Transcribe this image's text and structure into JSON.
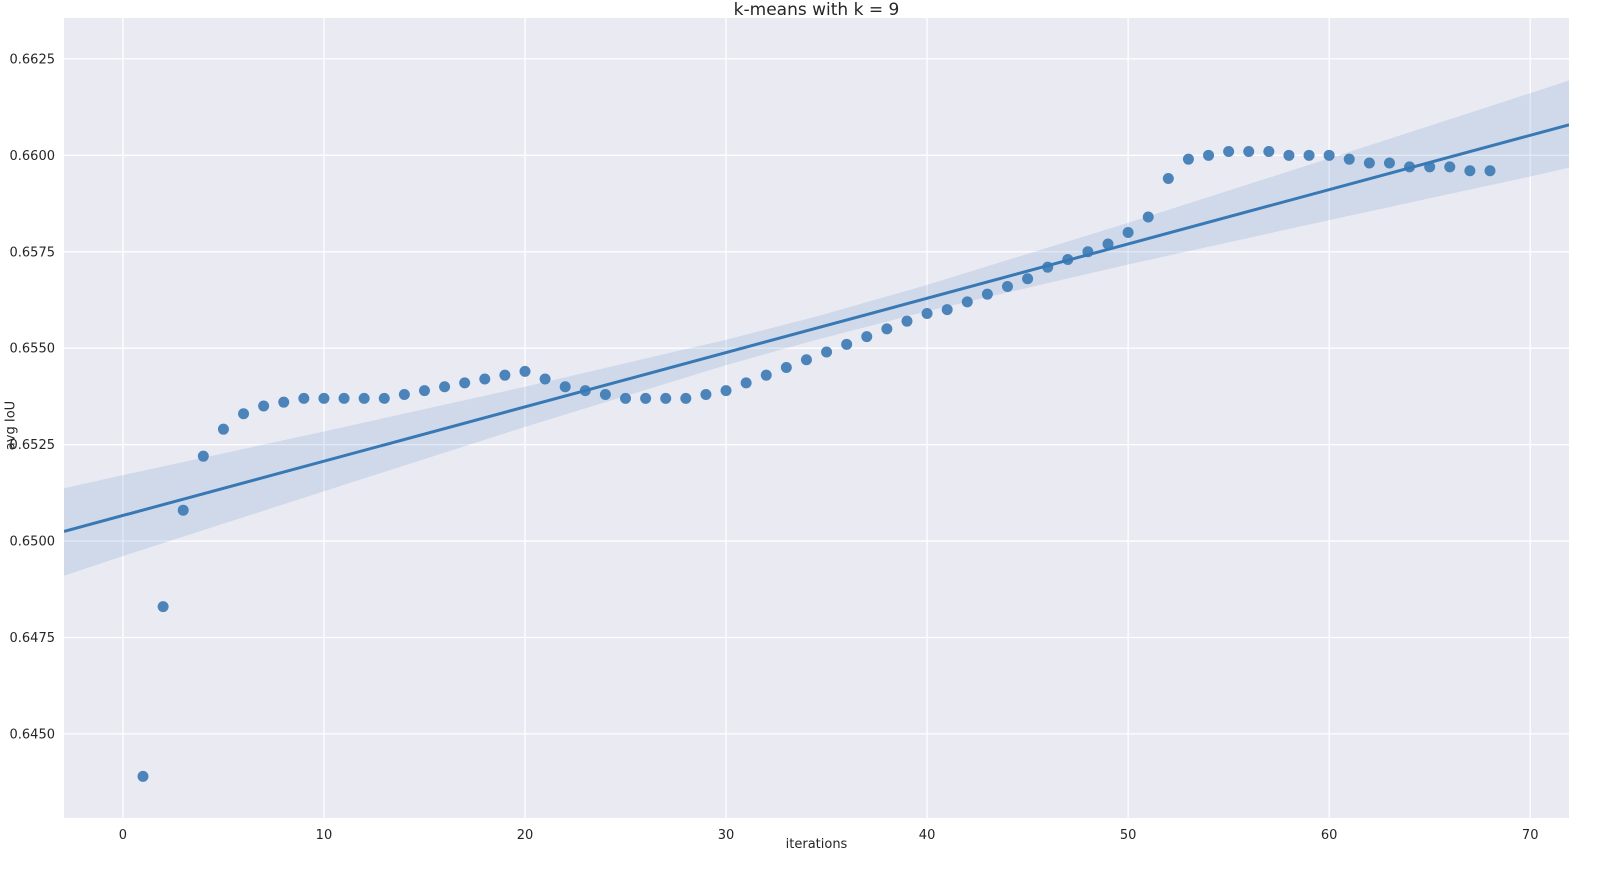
{
  "chart_data": {
    "type": "scatter",
    "title": "k-means with k = 9",
    "xlabel": "iterations",
    "ylabel": "avg IoU",
    "xlim": [
      -2.93,
      71.93
    ],
    "ylim": [
      0.64282,
      0.66356
    ],
    "xticks": [
      0,
      10,
      20,
      30,
      40,
      50,
      60,
      70
    ],
    "yticks": [
      0.645,
      0.6475,
      0.65,
      0.6525,
      0.655,
      0.6575,
      0.66,
      0.6625
    ],
    "grid": true,
    "legend": "none",
    "colors": {
      "plot_bg": "#eaeaf2",
      "grid": "#ffffff",
      "accent": "#3879b5",
      "band_opacity": 0.15,
      "text": "#262626"
    },
    "points": {
      "x": [
        1,
        2,
        3,
        4,
        5,
        6,
        7,
        8,
        9,
        10,
        11,
        12,
        13,
        14,
        15,
        16,
        17,
        18,
        19,
        20,
        21,
        22,
        23,
        24,
        25,
        26,
        27,
        28,
        29,
        30,
        31,
        32,
        33,
        34,
        35,
        36,
        37,
        38,
        39,
        40,
        41,
        42,
        43,
        44,
        45,
        46,
        47,
        48,
        49,
        50,
        51,
        52,
        53,
        54,
        55,
        56,
        57,
        58,
        59,
        60,
        61,
        62,
        63,
        64,
        65,
        66,
        67,
        68
      ],
      "y": [
        0.6439,
        0.6483,
        0.6508,
        0.6522,
        0.6529,
        0.6533,
        0.6535,
        0.6536,
        0.6537,
        0.6537,
        0.6537,
        0.6537,
        0.6537,
        0.6538,
        0.6539,
        0.654,
        0.6541,
        0.6542,
        0.6543,
        0.6544,
        0.6542,
        0.654,
        0.6539,
        0.6538,
        0.6537,
        0.6537,
        0.6537,
        0.6537,
        0.6538,
        0.6539,
        0.6541,
        0.6543,
        0.6545,
        0.6547,
        0.6549,
        0.6551,
        0.6553,
        0.6555,
        0.6557,
        0.6559,
        0.656,
        0.6562,
        0.6564,
        0.6566,
        0.6568,
        0.6571,
        0.6573,
        0.6575,
        0.6577,
        0.658,
        0.6584,
        0.6594,
        0.6599,
        0.66,
        0.6601,
        0.6601,
        0.6601,
        0.66,
        0.66,
        0.66,
        0.6599,
        0.6598,
        0.6598,
        0.6597,
        0.6597,
        0.6597,
        0.6596,
        0.6596
      ]
    },
    "regression": {
      "x": [
        -2.93,
        71.93
      ],
      "y": [
        0.65025,
        0.66079
      ]
    },
    "band": {
      "x": [
        -2.93,
        0,
        10,
        20,
        30,
        34.5,
        40,
        50,
        60,
        70,
        71.93
      ],
      "upper": [
        0.65137,
        0.65171,
        0.65284,
        0.654,
        0.65522,
        0.65582,
        0.65664,
        0.65825,
        0.65992,
        0.66161,
        0.66194
      ],
      "lower": [
        0.6491,
        0.64961,
        0.65129,
        0.65296,
        0.65456,
        0.65522,
        0.65596,
        0.65717,
        0.65832,
        0.65945,
        0.65968
      ]
    }
  }
}
